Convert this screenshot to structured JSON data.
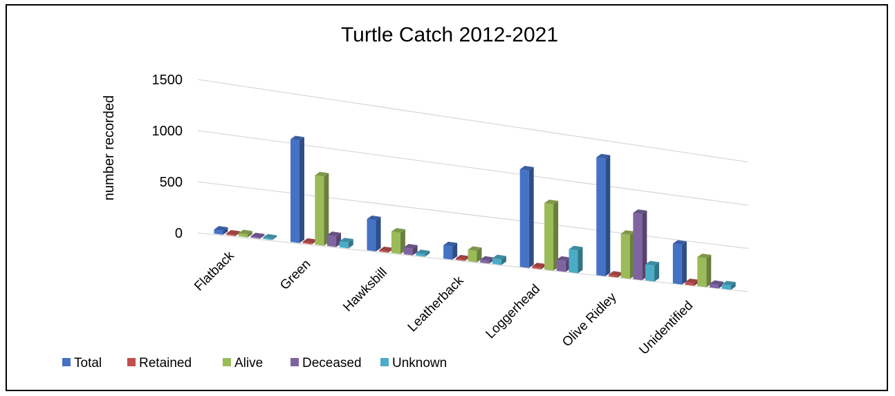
{
  "chart_data": {
    "type": "bar",
    "subtype": "3d-clustered-column",
    "title": "Turtle Catch 2012-2021",
    "xlabel": "",
    "ylabel": "number recorded",
    "ylim": [
      0,
      1500
    ],
    "yticks": [
      "0",
      "500",
      "1000",
      "1500"
    ],
    "grid": true,
    "legend_position": "bottom-left",
    "categories": [
      "Flatback",
      "Green",
      "Hawksbill",
      "Leatherback",
      "Loggerhead",
      "Olive Ridley",
      "Unidentified"
    ],
    "series": [
      {
        "name": "Total",
        "color": "#4472c4",
        "values": [
          40,
          1030,
          320,
          140,
          1050,
          1300,
          450
        ]
      },
      {
        "name": "Retained",
        "color": "#c0504d",
        "values": [
          5,
          15,
          8,
          10,
          20,
          20,
          30
        ]
      },
      {
        "name": "Alive",
        "color": "#9bbb59",
        "values": [
          30,
          700,
          220,
          120,
          720,
          490,
          330
        ]
      },
      {
        "name": "Deceased",
        "color": "#8064a2",
        "values": [
          10,
          110,
          70,
          30,
          120,
          740,
          40
        ]
      },
      {
        "name": "Unknown",
        "color": "#4bacc6",
        "values": [
          3,
          60,
          25,
          60,
          250,
          180,
          50
        ]
      }
    ]
  }
}
